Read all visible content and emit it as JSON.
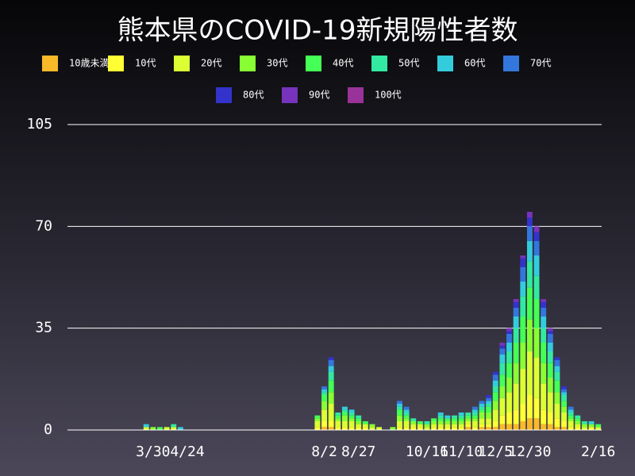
{
  "chart_data": {
    "type": "bar",
    "stacked": true,
    "title": "熊本県のCOVID-19新規陽性者数",
    "categories": [
      null,
      null,
      null,
      null,
      null,
      null,
      null,
      null,
      null,
      null,
      null,
      null,
      "3/30",
      null,
      null,
      null,
      null,
      "4/24",
      null,
      null,
      null,
      null,
      null,
      null,
      null,
      null,
      null,
      null,
      null,
      null,
      null,
      null,
      null,
      null,
      null,
      null,
      null,
      "8/2",
      null,
      null,
      null,
      null,
      "8/27",
      null,
      null,
      null,
      null,
      null,
      null,
      null,
      null,
      null,
      "10/16",
      null,
      null,
      null,
      null,
      "11/10",
      null,
      null,
      null,
      null,
      "12/5",
      null,
      null,
      null,
      null,
      "12/30",
      null,
      null,
      null,
      null,
      null,
      null,
      null,
      null,
      null,
      "2/16"
    ],
    "series": [
      {
        "name": "10歳未満",
        "color": "#f9b928",
        "values": [
          0,
          0,
          0,
          0,
          0,
          0,
          0,
          0,
          0,
          0,
          0,
          0,
          0,
          0,
          0,
          0,
          0,
          0,
          0,
          0,
          0,
          0,
          0,
          0,
          0,
          0,
          0,
          0,
          0,
          0,
          0,
          0,
          0,
          0,
          0,
          0,
          0,
          1,
          1,
          0,
          0,
          0,
          0,
          0,
          0,
          0,
          0,
          0,
          0,
          0,
          0,
          0,
          0,
          0,
          0,
          0,
          0,
          0,
          1,
          0,
          1,
          1,
          1,
          2,
          2,
          2,
          3,
          4,
          4,
          2,
          2,
          1,
          1,
          0,
          0,
          0,
          0,
          0
        ]
      },
      {
        "name": "10代",
        "color": "#ffff33",
        "values": [
          0,
          0,
          0,
          0,
          0,
          0,
          0,
          0,
          0,
          0,
          0,
          0,
          0,
          0,
          0,
          0,
          0,
          0,
          0,
          0,
          0,
          0,
          0,
          0,
          0,
          0,
          0,
          0,
          0,
          0,
          0,
          0,
          0,
          0,
          0,
          0,
          1,
          2,
          2,
          1,
          1,
          1,
          1,
          1,
          0,
          0,
          0,
          0,
          1,
          1,
          1,
          1,
          0,
          1,
          1,
          1,
          1,
          1,
          1,
          1,
          1,
          1,
          2,
          3,
          4,
          5,
          6,
          8,
          7,
          5,
          4,
          3,
          2,
          1,
          1,
          0,
          1,
          0
        ]
      },
      {
        "name": "20代",
        "color": "#dcff33",
        "values": [
          0,
          0,
          0,
          0,
          0,
          0,
          0,
          0,
          0,
          0,
          0,
          1,
          0,
          0,
          1,
          1,
          0,
          0,
          0,
          0,
          0,
          0,
          0,
          0,
          0,
          0,
          0,
          0,
          0,
          0,
          0,
          0,
          0,
          0,
          0,
          0,
          2,
          4,
          6,
          2,
          2,
          2,
          1,
          1,
          1,
          1,
          0,
          0,
          2,
          2,
          1,
          1,
          1,
          1,
          1,
          1,
          1,
          1,
          1,
          2,
          2,
          2,
          4,
          6,
          7,
          9,
          12,
          15,
          14,
          9,
          7,
          5,
          3,
          2,
          1,
          1,
          0,
          1
        ]
      },
      {
        "name": "30代",
        "color": "#88ff33",
        "values": [
          0,
          0,
          0,
          0,
          0,
          0,
          0,
          0,
          0,
          0,
          0,
          0,
          1,
          0,
          0,
          0,
          0,
          0,
          0,
          0,
          0,
          0,
          0,
          0,
          0,
          0,
          0,
          0,
          0,
          0,
          0,
          0,
          0,
          0,
          0,
          0,
          1,
          3,
          4,
          1,
          2,
          1,
          1,
          0,
          1,
          0,
          0,
          1,
          2,
          1,
          1,
          0,
          1,
          1,
          1,
          1,
          1,
          1,
          1,
          1,
          2,
          2,
          3,
          4,
          5,
          7,
          9,
          11,
          10,
          7,
          5,
          4,
          2,
          1,
          1,
          1,
          1,
          0
        ]
      },
      {
        "name": "40代",
        "color": "#44ff55",
        "values": [
          0,
          0,
          0,
          0,
          0,
          0,
          0,
          0,
          0,
          0,
          0,
          0,
          0,
          1,
          0,
          0,
          0,
          0,
          0,
          0,
          0,
          0,
          0,
          0,
          0,
          0,
          0,
          0,
          0,
          0,
          0,
          0,
          0,
          0,
          0,
          0,
          1,
          2,
          4,
          1,
          1,
          1,
          1,
          1,
          0,
          0,
          0,
          0,
          2,
          1,
          0,
          1,
          0,
          1,
          1,
          1,
          1,
          1,
          1,
          1,
          1,
          2,
          3,
          4,
          5,
          7,
          9,
          11,
          10,
          7,
          5,
          4,
          2,
          1,
          1,
          0,
          0,
          1
        ]
      },
      {
        "name": "50代",
        "color": "#33e8a0",
        "values": [
          0,
          0,
          0,
          0,
          0,
          0,
          0,
          0,
          0,
          0,
          0,
          0,
          0,
          0,
          0,
          1,
          0,
          0,
          0,
          0,
          0,
          0,
          0,
          0,
          0,
          0,
          0,
          0,
          0,
          0,
          0,
          0,
          0,
          0,
          0,
          0,
          0,
          1,
          3,
          1,
          1,
          1,
          1,
          0,
          0,
          0,
          0,
          0,
          1,
          1,
          1,
          0,
          1,
          0,
          1,
          0,
          1,
          1,
          1,
          1,
          1,
          1,
          2,
          4,
          4,
          5,
          7,
          9,
          8,
          5,
          4,
          3,
          2,
          1,
          1,
          1,
          0,
          0
        ]
      },
      {
        "name": "60代",
        "color": "#33ccdd",
        "values": [
          0,
          0,
          0,
          0,
          0,
          0,
          0,
          0,
          0,
          0,
          0,
          1,
          0,
          0,
          0,
          0,
          1,
          0,
          0,
          0,
          0,
          0,
          0,
          0,
          0,
          0,
          0,
          0,
          0,
          0,
          0,
          0,
          0,
          0,
          0,
          0,
          0,
          1,
          2,
          0,
          1,
          1,
          0,
          0,
          0,
          0,
          0,
          0,
          1,
          1,
          0,
          0,
          0,
          0,
          1,
          1,
          0,
          1,
          0,
          1,
          1,
          1,
          2,
          3,
          3,
          4,
          5,
          7,
          7,
          4,
          3,
          2,
          1,
          1,
          0,
          0,
          1,
          0
        ]
      },
      {
        "name": "70代",
        "color": "#3377dd",
        "values": [
          0,
          0,
          0,
          0,
          0,
          0,
          0,
          0,
          0,
          0,
          0,
          0,
          0,
          0,
          0,
          0,
          0,
          0,
          0,
          0,
          0,
          0,
          0,
          0,
          0,
          0,
          0,
          0,
          0,
          0,
          0,
          0,
          0,
          0,
          0,
          0,
          0,
          1,
          2,
          0,
          0,
          0,
          0,
          0,
          0,
          0,
          0,
          0,
          1,
          1,
          0,
          0,
          0,
          0,
          0,
          0,
          0,
          0,
          0,
          1,
          1,
          1,
          2,
          2,
          3,
          3,
          5,
          5,
          5,
          3,
          3,
          2,
          1,
          1,
          0,
          0,
          0,
          0
        ]
      },
      {
        "name": "80代",
        "color": "#3333cc",
        "values": [
          0,
          0,
          0,
          0,
          0,
          0,
          0,
          0,
          0,
          0,
          0,
          0,
          0,
          0,
          0,
          0,
          0,
          0,
          0,
          0,
          0,
          0,
          0,
          0,
          0,
          0,
          0,
          0,
          0,
          0,
          0,
          0,
          0,
          0,
          0,
          0,
          0,
          0,
          1,
          0,
          0,
          0,
          0,
          0,
          0,
          0,
          0,
          0,
          0,
          0,
          0,
          0,
          0,
          0,
          0,
          0,
          0,
          0,
          0,
          0,
          0,
          1,
          1,
          1,
          1,
          2,
          3,
          3,
          3,
          2,
          1,
          1,
          1,
          0,
          0,
          0,
          0,
          0
        ]
      },
      {
        "name": "90代",
        "color": "#7733bb",
        "values": [
          0,
          0,
          0,
          0,
          0,
          0,
          0,
          0,
          0,
          0,
          0,
          0,
          0,
          0,
          0,
          0,
          0,
          0,
          0,
          0,
          0,
          0,
          0,
          0,
          0,
          0,
          0,
          0,
          0,
          0,
          0,
          0,
          0,
          0,
          0,
          0,
          0,
          0,
          0,
          0,
          0,
          0,
          0,
          0,
          0,
          0,
          0,
          0,
          0,
          0,
          0,
          0,
          0,
          0,
          0,
          0,
          0,
          0,
          0,
          0,
          0,
          0,
          0,
          1,
          1,
          1,
          1,
          2,
          2,
          1,
          1,
          0,
          0,
          0,
          0,
          0,
          0,
          0
        ]
      },
      {
        "name": "100代",
        "color": "#993399",
        "values": [
          0,
          0,
          0,
          0,
          0,
          0,
          0,
          0,
          0,
          0,
          0,
          0,
          0,
          0,
          0,
          0,
          0,
          0,
          0,
          0,
          0,
          0,
          0,
          0,
          0,
          0,
          0,
          0,
          0,
          0,
          0,
          0,
          0,
          0,
          0,
          0,
          0,
          0,
          0,
          0,
          0,
          0,
          0,
          0,
          0,
          0,
          0,
          0,
          0,
          0,
          0,
          0,
          0,
          0,
          0,
          0,
          0,
          0,
          0,
          0,
          0,
          0,
          0,
          0,
          0,
          0,
          0,
          0,
          0,
          0,
          0,
          0,
          0,
          0,
          0,
          0,
          0,
          0
        ]
      }
    ],
    "ylim": [
      0,
      105
    ],
    "yticks": [
      0,
      35,
      70,
      105
    ],
    "grid": true
  }
}
